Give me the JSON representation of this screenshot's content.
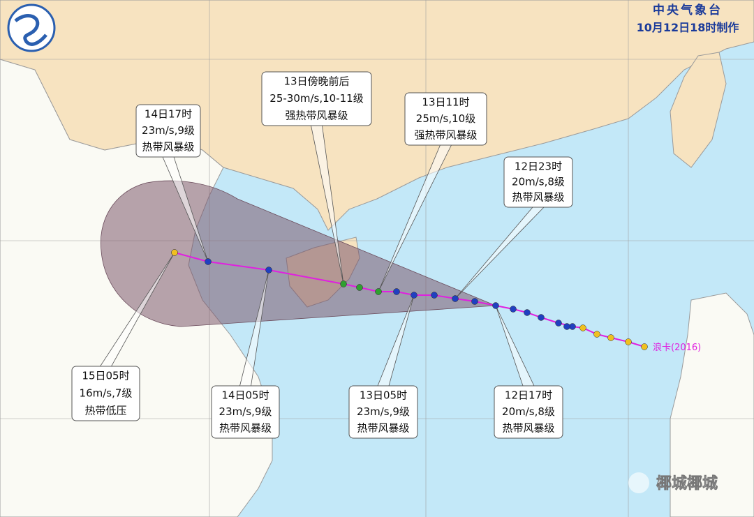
{
  "header": {
    "agency": "中央气象台",
    "issued": "10月12日18时制作"
  },
  "callouts": [
    {
      "lines": [
        "14日17时",
        "23m/s,9级",
        "热带风暴级"
      ]
    },
    {
      "lines": [
        "13日傍晚前后",
        "25-30m/s,10-11级",
        "强热带风暴级"
      ]
    },
    {
      "lines": [
        "13日11时",
        "25m/s,10级",
        "强热带风暴级"
      ]
    },
    {
      "lines": [
        "12日23时",
        "20m/s,8级",
        "热带风暴级"
      ]
    },
    {
      "lines": [
        "15日05时",
        "16m/s,7级",
        "热带低压"
      ]
    },
    {
      "lines": [
        "14日05时",
        "23m/s,9级",
        "热带风暴级"
      ]
    },
    {
      "lines": [
        "13日05时",
        "23m/s,9级",
        "热带风暴级"
      ]
    },
    {
      "lines": [
        "12日17时",
        "20m/s,8级",
        "热带风暴级"
      ]
    }
  ],
  "storm": {
    "label": "浪卡(2016)"
  },
  "watermark": "椰城椰城"
}
